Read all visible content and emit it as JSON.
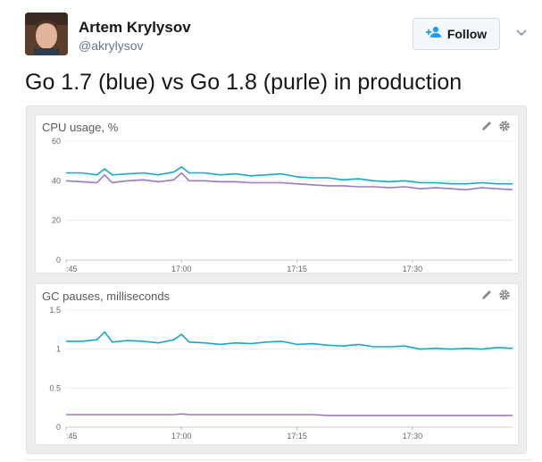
{
  "tweet": {
    "author_name": "Artem Krylysov",
    "author_handle": "@akrylysov",
    "text": "Go 1.7 (blue) vs Go 1.8 (purle) in production",
    "follow_label": "Follow"
  },
  "icons": {
    "follow": "add-person-icon",
    "caret": "chevron-down-icon",
    "edit": "pencil-icon",
    "settings": "gear-icon"
  },
  "colors": {
    "follow_accent": "#1da1f2",
    "series_a": "#16a8c7",
    "series_b": "#9d79c2"
  },
  "chart_data": [
    {
      "type": "line",
      "title": "CPU usage, %",
      "xlabel": "",
      "ylabel": "",
      "ylim": [
        0,
        60
      ],
      "y_ticks": [
        "60",
        "40",
        "20",
        "0"
      ],
      "y_tick_values": [
        60,
        40,
        20,
        0
      ],
      "x_ticks": [
        ":45",
        "17:00",
        "17:15",
        "17:30"
      ],
      "x_tick_minutes": [
        45,
        60,
        75,
        90
      ],
      "x_range_minutes": [
        45,
        103
      ],
      "grid": true,
      "legend": "none",
      "series": [
        {
          "color": "#16a8c7",
          "x": [
            45,
            47,
            49,
            50,
            51,
            53,
            55,
            57,
            59,
            60,
            61,
            63,
            65,
            67,
            69,
            71,
            73,
            75,
            77,
            79,
            81,
            83,
            85,
            87,
            89,
            91,
            93,
            95,
            97,
            99,
            101,
            103
          ],
          "values": [
            44,
            44,
            43,
            46,
            43,
            43.5,
            44,
            43,
            44.5,
            47,
            44,
            44,
            43,
            43.5,
            42.5,
            43,
            43.5,
            42,
            41.5,
            41.5,
            40.5,
            41,
            40,
            39.5,
            40,
            39,
            39,
            38.5,
            38.5,
            39,
            38.5,
            38.5
          ]
        },
        {
          "color": "#9d79c2",
          "x": [
            45,
            47,
            49,
            50,
            51,
            53,
            55,
            57,
            59,
            60,
            61,
            63,
            65,
            67,
            69,
            71,
            73,
            75,
            77,
            79,
            81,
            83,
            85,
            87,
            89,
            91,
            93,
            95,
            97,
            99,
            101,
            103
          ],
          "values": [
            40,
            39.5,
            39,
            43,
            39,
            40,
            40.5,
            39.5,
            40.5,
            44,
            40,
            40,
            39.5,
            39.5,
            39,
            39,
            39,
            38.5,
            38,
            37.5,
            37.5,
            37,
            37,
            36.5,
            37,
            36,
            36.5,
            36,
            35.5,
            36.5,
            36,
            35.5
          ]
        }
      ]
    },
    {
      "type": "line",
      "title": "GC pauses, milliseconds",
      "xlabel": "",
      "ylabel": "",
      "ylim": [
        0,
        1.5
      ],
      "y_ticks": [
        "1.5",
        "1",
        "0.5",
        "0"
      ],
      "y_tick_values": [
        1.5,
        1,
        0.5,
        0
      ],
      "x_ticks": [
        ":45",
        "17:00",
        "17:15",
        "17:30"
      ],
      "x_tick_minutes": [
        45,
        60,
        75,
        90
      ],
      "x_range_minutes": [
        45,
        103
      ],
      "grid": true,
      "legend": "none",
      "series": [
        {
          "color": "#16a8c7",
          "x": [
            45,
            47,
            49,
            50,
            51,
            53,
            55,
            57,
            59,
            60,
            61,
            63,
            65,
            67,
            69,
            71,
            73,
            75,
            77,
            79,
            81,
            83,
            85,
            87,
            89,
            91,
            93,
            95,
            97,
            99,
            101,
            103
          ],
          "values": [
            1.1,
            1.1,
            1.12,
            1.22,
            1.09,
            1.11,
            1.1,
            1.08,
            1.12,
            1.19,
            1.09,
            1.08,
            1.06,
            1.08,
            1.07,
            1.09,
            1.1,
            1.06,
            1.07,
            1.05,
            1.04,
            1.06,
            1.03,
            1.03,
            1.04,
            1.0,
            1.01,
            1.0,
            1.01,
            1.0,
            1.02,
            1.01
          ]
        },
        {
          "color": "#9d79c2",
          "x": [
            45,
            47,
            49,
            50,
            51,
            53,
            55,
            57,
            59,
            60,
            61,
            63,
            65,
            67,
            69,
            71,
            73,
            75,
            77,
            79,
            81,
            83,
            85,
            87,
            89,
            91,
            93,
            95,
            97,
            99,
            101,
            103
          ],
          "values": [
            0.16,
            0.16,
            0.16,
            0.16,
            0.16,
            0.16,
            0.16,
            0.16,
            0.16,
            0.17,
            0.16,
            0.16,
            0.16,
            0.16,
            0.16,
            0.16,
            0.16,
            0.16,
            0.16,
            0.15,
            0.15,
            0.15,
            0.15,
            0.15,
            0.15,
            0.15,
            0.15,
            0.15,
            0.15,
            0.15,
            0.15,
            0.15
          ]
        }
      ]
    }
  ]
}
